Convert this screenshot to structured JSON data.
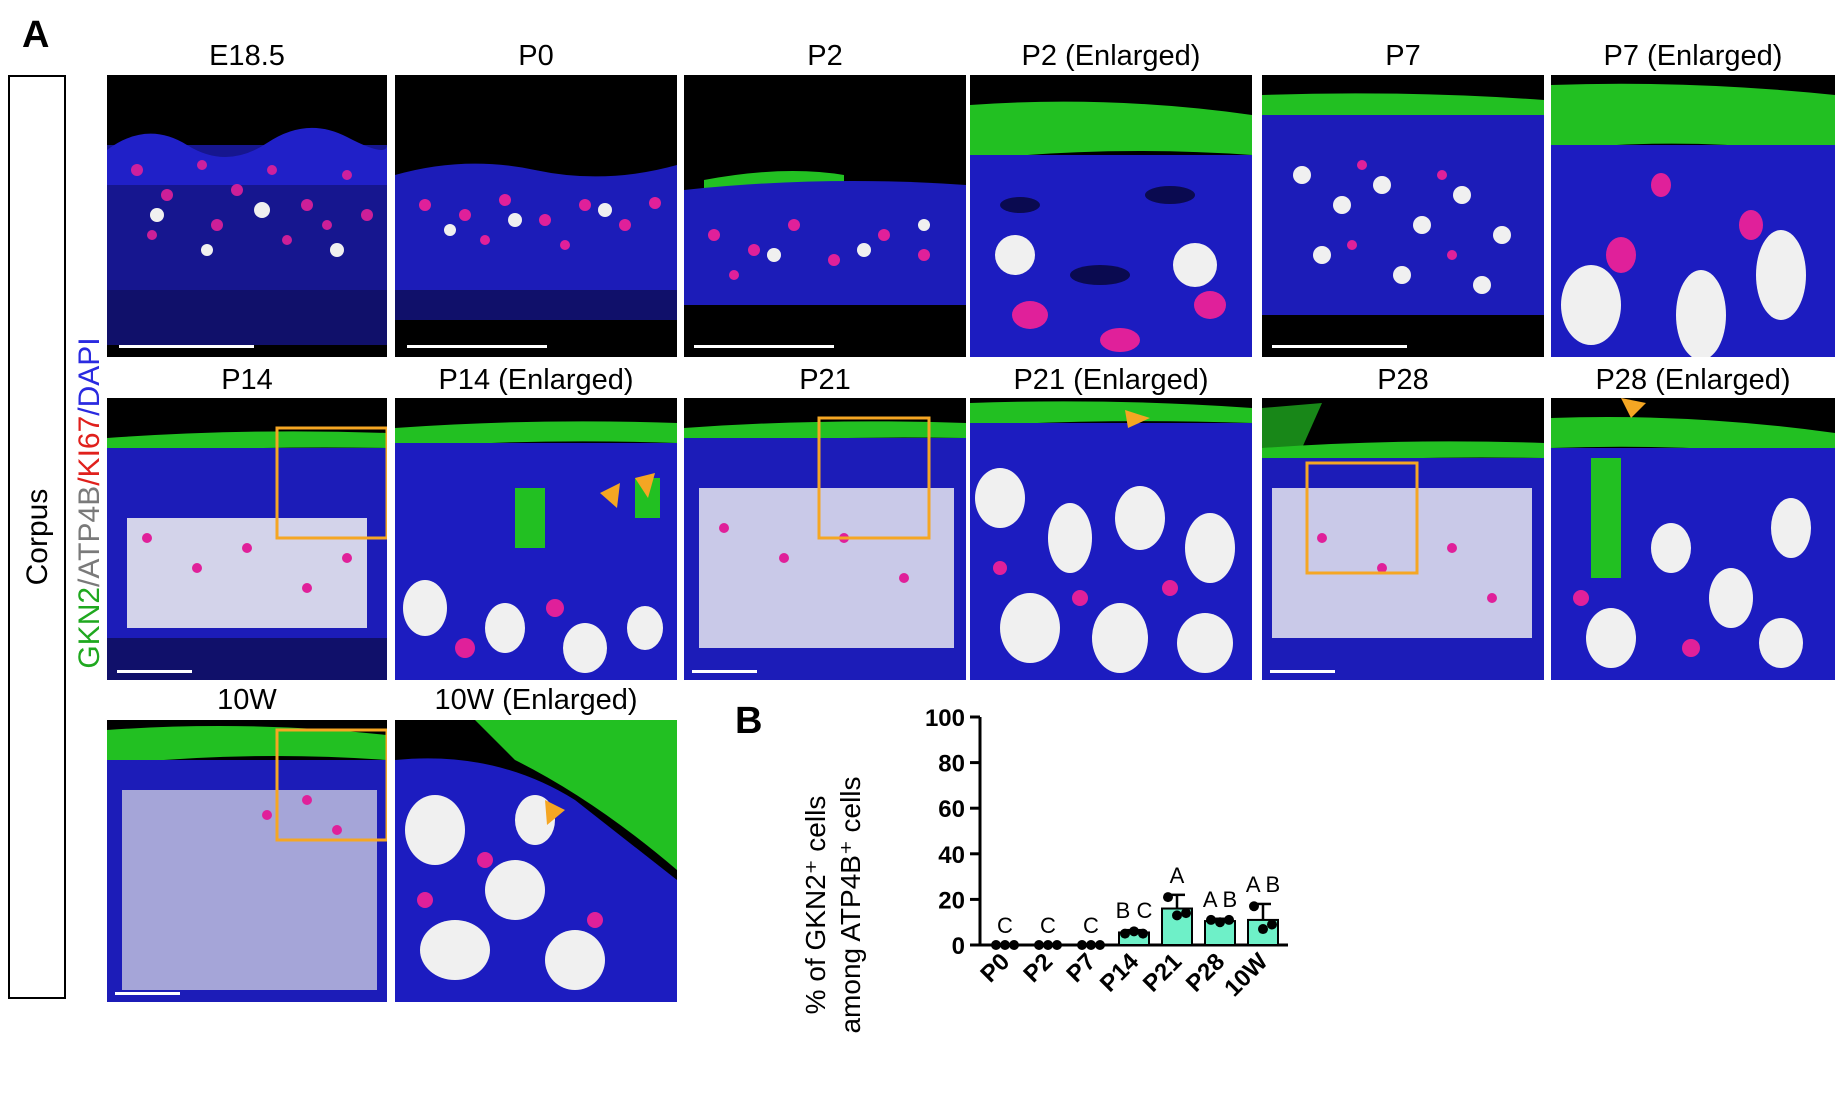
{
  "figure": {
    "panel_a_letter": "A",
    "panel_b_letter": "B",
    "side_label": "Corpus",
    "stain_label": {
      "gkn2": "GKN2",
      "sep1": "/",
      "atp4b": "ATP4B",
      "sep2": "/",
      "ki67": "KI67",
      "sep3": "/",
      "dapi": "DAPI",
      "colors": {
        "gkn2": "#1fa81f",
        "atp4b": "#8a8a8a",
        "ki67": "#e0201c",
        "dapi": "#2a2ae0"
      }
    },
    "row1_titles": [
      "E18.5",
      "P0",
      "P2",
      "P2 (Enlarged)",
      "P7",
      "P7 (Enlarged)"
    ],
    "row2_titles": [
      "P14",
      "P14 (Enlarged)",
      "P21",
      "P21 (Enlarged)",
      "P28",
      "P28 (Enlarged)"
    ],
    "row3_titles": [
      "10W",
      "10W (Enlarged)"
    ],
    "colors": {
      "box": "#f5a623",
      "arrow": "#f5a623",
      "bar_fill": "#6ef0c8"
    }
  },
  "chart_data": {
    "type": "bar",
    "categories": [
      "P0",
      "P2",
      "P7",
      "P14",
      "P21",
      "P28",
      "10W"
    ],
    "values": [
      0,
      0,
      0,
      5.5,
      16,
      10.5,
      11
    ],
    "errors": [
      0,
      0,
      0,
      1,
      6,
      1,
      7
    ],
    "points": [
      [
        0,
        0,
        0
      ],
      [
        0,
        0,
        0
      ],
      [
        0,
        0,
        0
      ],
      [
        5,
        6,
        5
      ],
      [
        21,
        13,
        14
      ],
      [
        11,
        10,
        11
      ],
      [
        17,
        7,
        9
      ]
    ],
    "significance": [
      "C",
      "C",
      "C",
      "B C",
      "A",
      "A B",
      "A B"
    ],
    "ylabel_line1": "% of GKN2⁺ cells",
    "ylabel_line2": "among ATP4B⁺ cells",
    "yticks": [
      0,
      20,
      40,
      60,
      80,
      100
    ],
    "ylim": [
      0,
      100
    ]
  }
}
